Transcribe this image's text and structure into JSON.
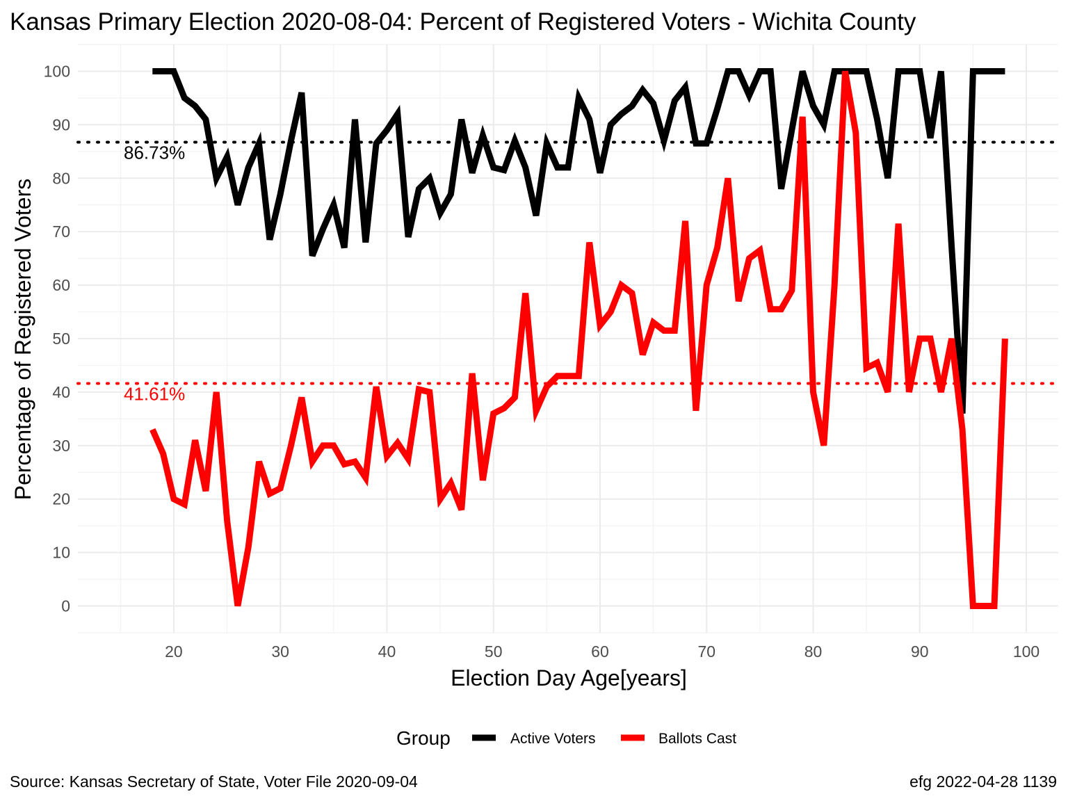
{
  "chart_data": {
    "type": "line",
    "title": "Kansas Primary Election 2020-08-04:  Percent of Registered Voters - Wichita County",
    "xlabel": "Election Day Age[years]",
    "ylabel": "Percentage of Registered Voters",
    "xlim": [
      11,
      103
    ],
    "ylim": [
      -5,
      105
    ],
    "x_ticks": [
      20,
      30,
      40,
      50,
      60,
      70,
      80,
      90,
      100
    ],
    "y_ticks": [
      0,
      10,
      20,
      30,
      40,
      50,
      60,
      70,
      80,
      90,
      100
    ],
    "grid": true,
    "legend_position": "bottom",
    "legend_title": "Group",
    "series": [
      {
        "name": "Active Voters",
        "color": "#000000",
        "x": [
          18,
          19,
          20,
          21,
          22,
          23,
          24,
          25,
          26,
          27,
          28,
          29,
          30,
          31,
          32,
          33,
          34,
          35,
          36,
          37,
          38,
          39,
          40,
          41,
          42,
          43,
          44,
          45,
          46,
          47,
          48,
          49,
          50,
          51,
          52,
          53,
          54,
          55,
          56,
          57,
          58,
          59,
          60,
          61,
          62,
          63,
          64,
          65,
          66,
          67,
          68,
          69,
          70,
          71,
          72,
          73,
          74,
          75,
          76,
          77,
          78,
          79,
          80,
          81,
          82,
          83,
          84,
          85,
          86,
          87,
          88,
          89,
          90,
          91,
          92,
          93,
          94,
          95,
          96,
          97,
          98
        ],
        "y": [
          100,
          100,
          100,
          95,
          93.5,
          91,
          80,
          84,
          75,
          82,
          86.5,
          68.5,
          77,
          87,
          96,
          65.5,
          70.5,
          75,
          67,
          91,
          68,
          86.5,
          89,
          92,
          69,
          78,
          80,
          73.5,
          77,
          91,
          81,
          88,
          82,
          81.5,
          87,
          82,
          73,
          86.5,
          82,
          82,
          95,
          91,
          81,
          90,
          92,
          93.5,
          96.5,
          94,
          87,
          94.5,
          97,
          86.5,
          86.5,
          93,
          100,
          100,
          95.5,
          100,
          100,
          78,
          89,
          100,
          93.5,
          90,
          100,
          100,
          100,
          100,
          91,
          80,
          100,
          100,
          100,
          87.5,
          100,
          67,
          36,
          100,
          100,
          100,
          100
        ]
      },
      {
        "name": "Ballots Cast",
        "color": "#ff0000",
        "x": [
          18,
          19,
          20,
          21,
          22,
          23,
          24,
          25,
          26,
          27,
          28,
          29,
          30,
          31,
          32,
          33,
          34,
          35,
          36,
          37,
          38,
          39,
          40,
          41,
          42,
          43,
          44,
          45,
          46,
          47,
          48,
          49,
          50,
          51,
          52,
          53,
          54,
          55,
          56,
          57,
          58,
          59,
          60,
          61,
          62,
          63,
          64,
          65,
          66,
          67,
          68,
          69,
          70,
          71,
          72,
          73,
          74,
          75,
          76,
          77,
          78,
          79,
          80,
          81,
          82,
          83,
          84,
          85,
          86,
          87,
          88,
          89,
          90,
          91,
          92,
          93,
          94,
          95,
          96,
          97,
          98
        ],
        "y": [
          33,
          28.5,
          20,
          19,
          31,
          21.5,
          40,
          16,
          0,
          11,
          27,
          21,
          22,
          30,
          39,
          27,
          30,
          30,
          26.5,
          27,
          24,
          41,
          28,
          30.5,
          27.5,
          40.5,
          40,
          20,
          23,
          18,
          43.5,
          23.5,
          36,
          37,
          39,
          58.5,
          36.5,
          41,
          43,
          43,
          43,
          68,
          52.5,
          55,
          60,
          58.5,
          47,
          53,
          51.5,
          51.5,
          72,
          36.5,
          60,
          67,
          80,
          57,
          65,
          66.5,
          55.5,
          55.5,
          59,
          91.5,
          40,
          30,
          60,
          100,
          88.5,
          44.5,
          45.5,
          40,
          71.5,
          40,
          50,
          50,
          40,
          50,
          33,
          0,
          0,
          0,
          50
        ]
      }
    ],
    "reference_lines": [
      {
        "series": "Active Voters",
        "value": 86.73,
        "label": "86.73%",
        "color": "#000000"
      },
      {
        "series": "Ballots Cast",
        "value": 41.61,
        "label": "41.61%",
        "color": "#ff0000"
      }
    ],
    "caption_left": "Source:  Kansas Secretary of State, Voter File  2020-09-04",
    "caption_right": "efg 2022-04-28 1139"
  }
}
